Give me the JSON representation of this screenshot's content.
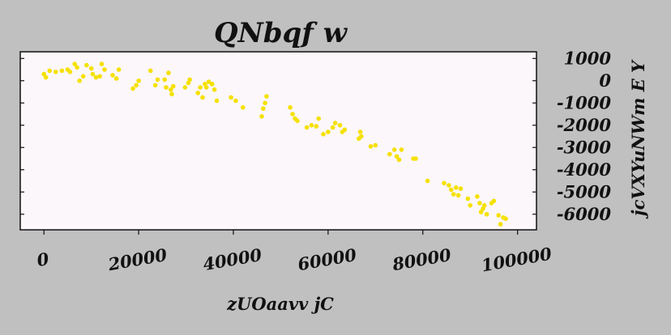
{
  "chart_data": {
    "type": "scatter",
    "title": "QNbqf w",
    "xlabel": "zUOaavv jC",
    "ylabel": "jcVXYuNWm E Y",
    "xlim": [
      -5000,
      104000
    ],
    "ylim": [
      -6700,
      1300
    ],
    "x_ticks": [
      0,
      20000,
      40000,
      60000,
      80000,
      100000
    ],
    "y_ticks": [
      1000,
      0,
      -1000,
      -2000,
      -3000,
      -4000,
      -5000,
      -6000
    ],
    "y_axis_side": "right",
    "grid": false,
    "marker_color": "#f5e100",
    "plot_background": "#fbf7fa",
    "figure_background": "#c0c0c0",
    "points": [
      [
        0,
        300
      ],
      [
        400,
        150
      ],
      [
        1200,
        450
      ],
      [
        2500,
        400
      ],
      [
        3800,
        450
      ],
      [
        5000,
        500
      ],
      [
        5500,
        400
      ],
      [
        6500,
        750
      ],
      [
        7000,
        600
      ],
      [
        7500,
        0
      ],
      [
        8300,
        200
      ],
      [
        9000,
        700
      ],
      [
        10000,
        550
      ],
      [
        10300,
        300
      ],
      [
        11000,
        150
      ],
      [
        11800,
        200
      ],
      [
        12200,
        750
      ],
      [
        12800,
        500
      ],
      [
        14500,
        250
      ],
      [
        15300,
        100
      ],
      [
        15800,
        500
      ],
      [
        18800,
        -350
      ],
      [
        19500,
        -200
      ],
      [
        20000,
        0
      ],
      [
        22500,
        450
      ],
      [
        23500,
        -200
      ],
      [
        24000,
        50
      ],
      [
        25500,
        50
      ],
      [
        25800,
        -300
      ],
      [
        26300,
        350
      ],
      [
        26800,
        -400
      ],
      [
        27000,
        -600
      ],
      [
        27300,
        -250
      ],
      [
        29800,
        -300
      ],
      [
        30500,
        -100
      ],
      [
        30800,
        50
      ],
      [
        32500,
        -550
      ],
      [
        33000,
        -300
      ],
      [
        33500,
        -750
      ],
      [
        34000,
        -150
      ],
      [
        34300,
        -300
      ],
      [
        34800,
        -50
      ],
      [
        35500,
        -150
      ],
      [
        36000,
        -400
      ],
      [
        36500,
        -900
      ],
      [
        39500,
        -750
      ],
      [
        40500,
        -900
      ],
      [
        42000,
        -1200
      ],
      [
        46000,
        -1600
      ],
      [
        46300,
        -1250
      ],
      [
        46700,
        -1000
      ],
      [
        47000,
        -700
      ],
      [
        52000,
        -1200
      ],
      [
        52500,
        -1500
      ],
      [
        53000,
        -1700
      ],
      [
        53500,
        -1800
      ],
      [
        55500,
        -2100
      ],
      [
        56500,
        -2000
      ],
      [
        57500,
        -2050
      ],
      [
        58000,
        -1700
      ],
      [
        59000,
        -2400
      ],
      [
        60000,
        -2300
      ],
      [
        61000,
        -2100
      ],
      [
        61500,
        -1900
      ],
      [
        62500,
        -2000
      ],
      [
        63000,
        -2300
      ],
      [
        63500,
        -2200
      ],
      [
        66500,
        -2600
      ],
      [
        66800,
        -2300
      ],
      [
        67000,
        -2500
      ],
      [
        69000,
        -2950
      ],
      [
        70000,
        -2900
      ],
      [
        73000,
        -3300
      ],
      [
        74000,
        -3100
      ],
      [
        74500,
        -3400
      ],
      [
        75000,
        -3550
      ],
      [
        75500,
        -3100
      ],
      [
        78000,
        -3500
      ],
      [
        78500,
        -3500
      ],
      [
        81000,
        -4500
      ],
      [
        84500,
        -4600
      ],
      [
        85500,
        -4700
      ],
      [
        86000,
        -4900
      ],
      [
        86500,
        -5100
      ],
      [
        87000,
        -4800
      ],
      [
        87500,
        -5150
      ],
      [
        88000,
        -4850
      ],
      [
        89500,
        -5300
      ],
      [
        90000,
        -5600
      ],
      [
        91500,
        -5200
      ],
      [
        92000,
        -5500
      ],
      [
        92300,
        -5900
      ],
      [
        92700,
        -5750
      ],
      [
        93000,
        -5600
      ],
      [
        93500,
        -6000
      ],
      [
        94500,
        -5500
      ],
      [
        95000,
        -5400
      ],
      [
        96000,
        -6050
      ],
      [
        96400,
        -6450
      ],
      [
        97000,
        -6150
      ],
      [
        97500,
        -6200
      ]
    ]
  }
}
